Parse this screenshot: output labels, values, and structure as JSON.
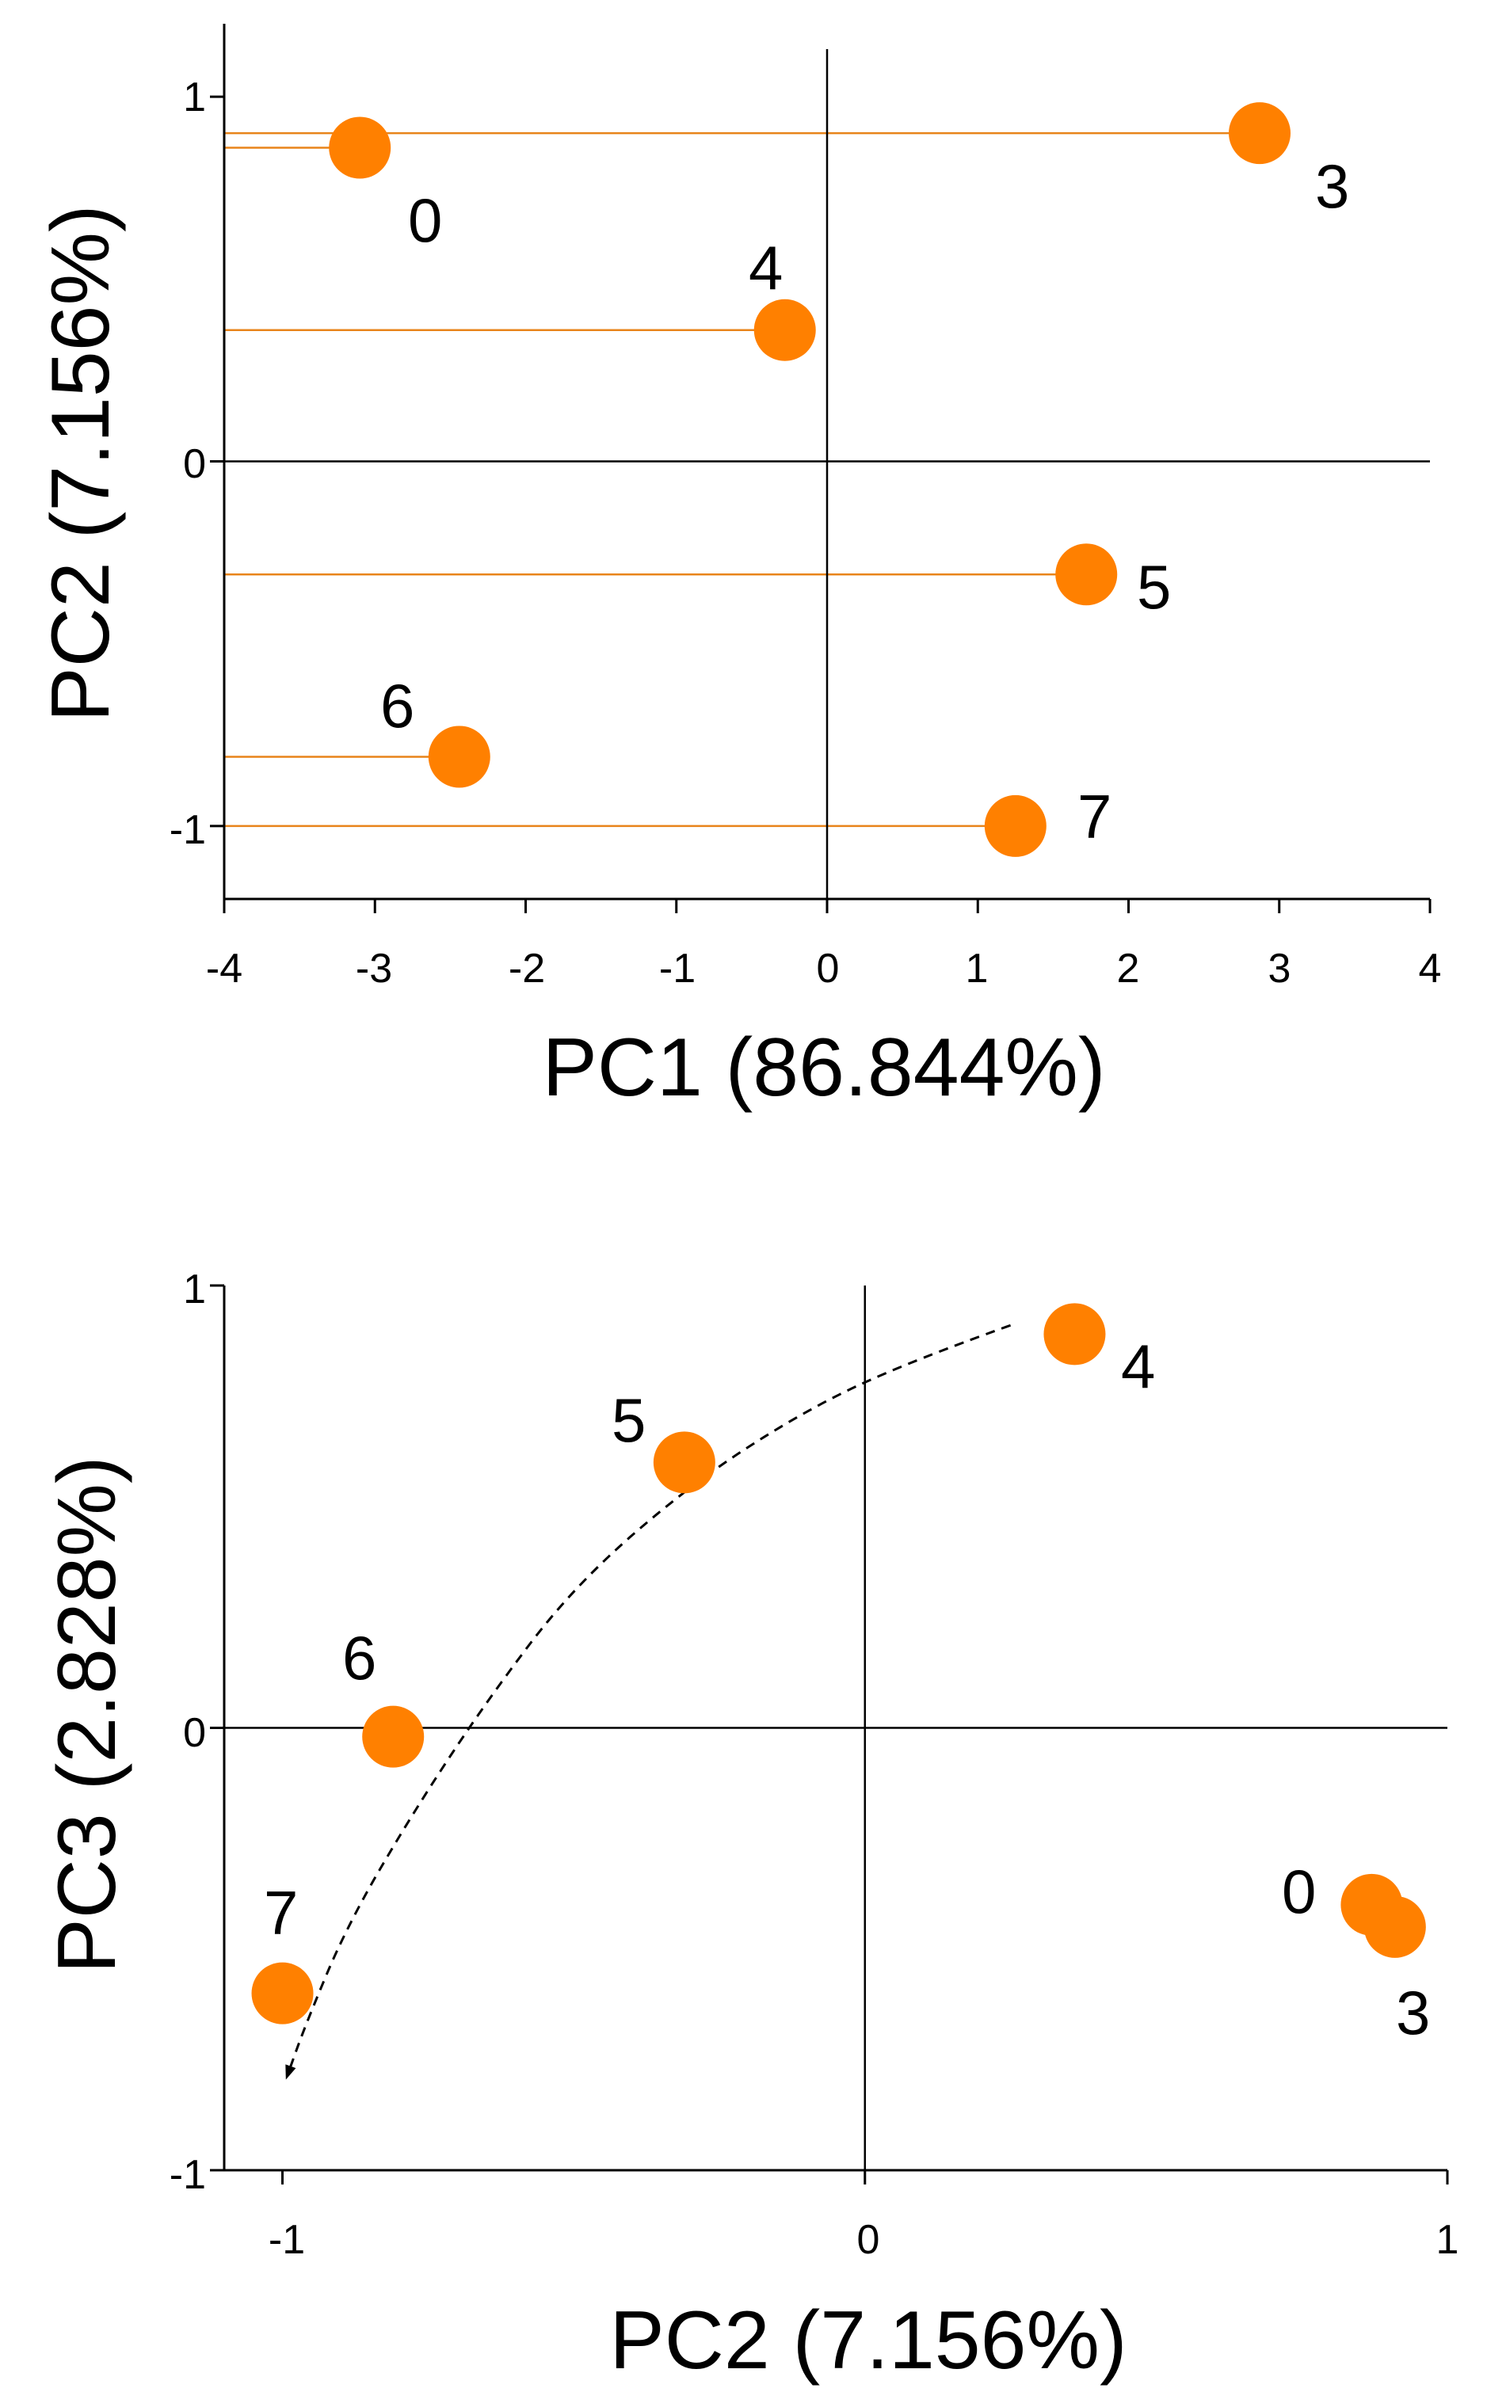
{
  "colors": {
    "marker": "#ff8000",
    "leader_line": "#e8841a",
    "axis": "#000000",
    "trend_curve": "#000000"
  },
  "chart_data": [
    {
      "type": "scatter",
      "xlabel": "PC1 (86.844%)",
      "ylabel": "PC2 (7.156%)",
      "xlim": [
        -4,
        4
      ],
      "ylim": [
        -1.2,
        1.2
      ],
      "xticks": [
        "-4",
        "-3",
        "-2",
        "-1",
        "0",
        "1",
        "2",
        "3",
        "4"
      ],
      "yticks": [
        "-1",
        "0",
        "1"
      ],
      "grid": false,
      "zero_lines": true,
      "points": [
        {
          "label": "0",
          "x": -3.1,
          "y": 0.86
        },
        {
          "label": "3",
          "x": 2.87,
          "y": 0.9
        },
        {
          "label": "4",
          "x": -0.28,
          "y": 0.36
        },
        {
          "label": "5",
          "x": 1.72,
          "y": -0.31
        },
        {
          "label": "6",
          "x": -2.44,
          "y": -0.81
        },
        {
          "label": "7",
          "x": 1.25,
          "y": -1.0
        }
      ]
    },
    {
      "type": "scatter",
      "xlabel": "PC2 (7.156%)",
      "ylabel": "PC3 (2.828%)",
      "xlim": [
        -1.1,
        1
      ],
      "ylim": [
        -1,
        1
      ],
      "xticks": [
        "-1",
        "0",
        "1"
      ],
      "yticks": [
        "-1",
        "0",
        "1"
      ],
      "grid": false,
      "zero_lines": true,
      "points": [
        {
          "label": "0",
          "x": 0.87,
          "y": -0.4
        },
        {
          "label": "3",
          "x": 0.91,
          "y": -0.45
        },
        {
          "label": "4",
          "x": 0.36,
          "y": 0.89
        },
        {
          "label": "5",
          "x": -0.31,
          "y": 0.6
        },
        {
          "label": "6",
          "x": -0.81,
          "y": -0.02
        },
        {
          "label": "7",
          "x": -1.0,
          "y": -0.6
        }
      ],
      "trend_curve": [
        [
          0.25,
          0.91
        ],
        [
          0.08,
          0.83
        ],
        [
          -0.1,
          0.72
        ],
        [
          -0.3,
          0.55
        ],
        [
          -0.5,
          0.32
        ],
        [
          -0.65,
          0.06
        ],
        [
          -0.78,
          -0.2
        ],
        [
          -0.89,
          -0.45
        ],
        [
          -0.96,
          -0.67
        ],
        [
          -0.99,
          -0.78
        ]
      ]
    }
  ]
}
